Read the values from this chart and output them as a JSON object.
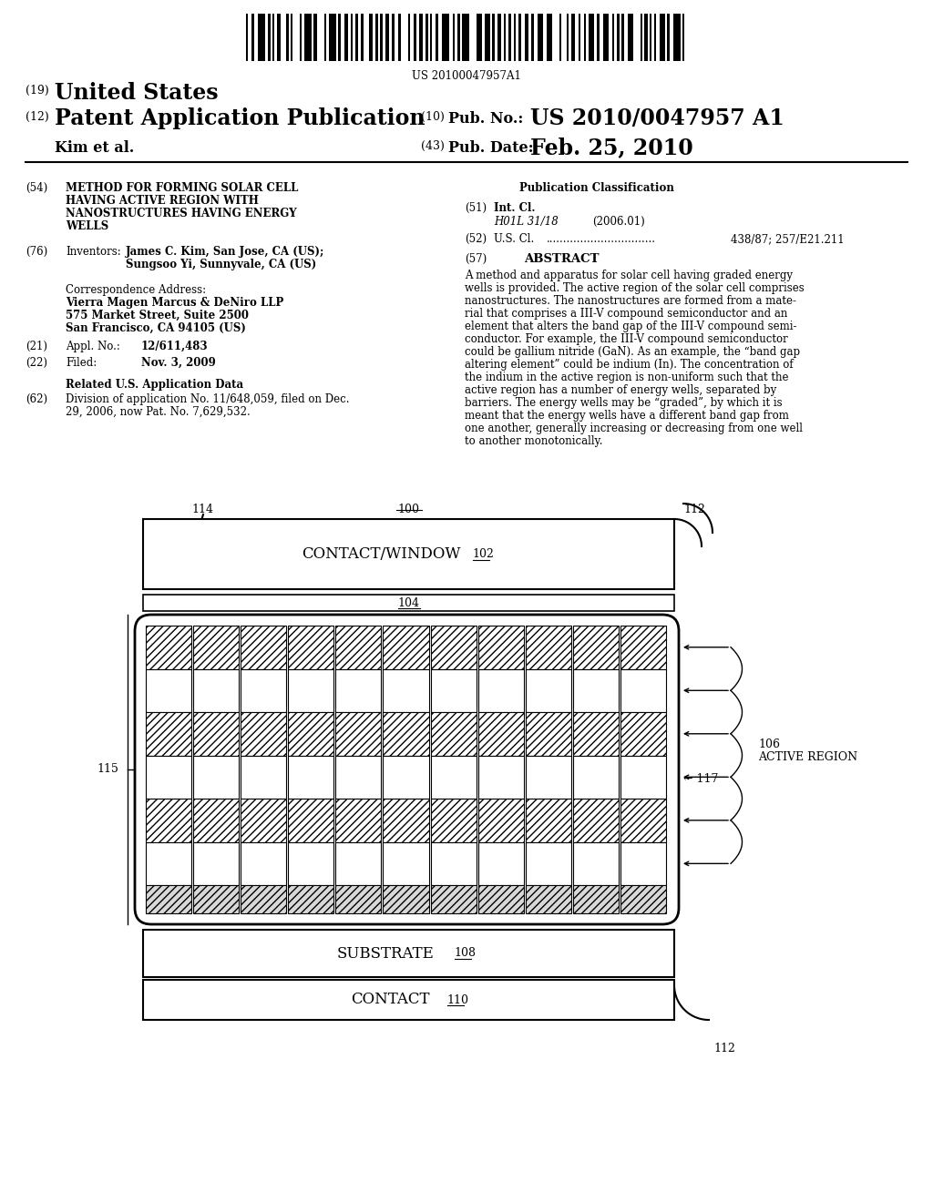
{
  "background_color": "#ffffff",
  "barcode_text": "US 20100047957A1",
  "header": {
    "number_19": "(19)",
    "united_states": "United States",
    "number_12": "(12)",
    "patent_app_pub": "Patent Application Publication",
    "author": "Kim et al.",
    "number_10": "(10)",
    "pub_no_label": "Pub. No.:",
    "pub_no_value": "US 2010/0047957 A1",
    "number_43": "(43)",
    "pub_date_label": "Pub. Date:",
    "pub_date_value": "Feb. 25, 2010"
  },
  "left_col": {
    "item54_num": "(54)",
    "item54_lines": [
      "METHOD FOR FORMING SOLAR CELL",
      "HAVING ACTIVE REGION WITH",
      "NANOSTRUCTURES HAVING ENERGY",
      "WELLS"
    ],
    "item76_num": "(76)",
    "item76_label": "Inventors:",
    "item76_line1": "James C. Kim, San Jose, CA (US);",
    "item76_line2": "Sungsoo Yi, Sunnyvale, CA (US)",
    "corr_label": "Correspondence Address:",
    "corr_firm": "Vierra Magen Marcus & DeNiro LLP",
    "corr_addr1": "575 Market Street, Suite 2500",
    "corr_addr2": "San Francisco, CA 94105 (US)",
    "item21_num": "(21)",
    "item21_label": "Appl. No.:",
    "item21_value": "12/611,483",
    "item22_num": "(22)",
    "item22_label": "Filed:",
    "item22_value": "Nov. 3, 2009",
    "related_label": "Related U.S. Application Data",
    "item62_num": "(62)",
    "item62_line1": "Division of application No. 11/648,059, filed on Dec.",
    "item62_line2": "29, 2006, now Pat. No. 7,629,532."
  },
  "right_col": {
    "pub_class_label": "Publication Classification",
    "item51_num": "(51)",
    "item51_label": "Int. Cl.",
    "item51_code": "H01L 31/18",
    "item51_year": "(2006.01)",
    "item52_num": "(52)",
    "item52_label": "U.S. Cl.",
    "item52_value": "438/87; 257/E21.211",
    "item57_num": "(57)",
    "item57_label": "ABSTRACT",
    "abstract_lines": [
      "A method and apparatus for solar cell having graded energy",
      "wells is provided. The active region of the solar cell comprises",
      "nanostructures. The nanostructures are formed from a mate-",
      "rial that comprises a III-V compound semiconductor and an",
      "element that alters the band gap of the III-V compound semi-",
      "conductor. For example, the III-V compound semiconductor",
      "could be gallium nitride (GaN). As an example, the “band gap",
      "altering element” could be indium (In). The concentration of",
      "the indium in the active region is non-uniform such that the",
      "active region has a number of energy wells, separated by",
      "barriers. The energy wells may be “graded”, by which it is",
      "meant that the energy wells have a different band gap from",
      "one another, generally increasing or decreasing from one well",
      "to another monotonically."
    ]
  },
  "diagram": {
    "label_100": "100",
    "label_102": "102",
    "label_104": "104",
    "label_106": "106",
    "label_108": "108",
    "label_110": "110",
    "label_112": "112",
    "label_114": "114",
    "label_115": "115",
    "label_117": "117",
    "text_contact_window": "CONTACT/WINDOW",
    "text_substrate": "SUBSTRATE",
    "text_contact": "CONTACT",
    "text_active_region": "ACTIVE REGION",
    "num_columns": 11
  }
}
